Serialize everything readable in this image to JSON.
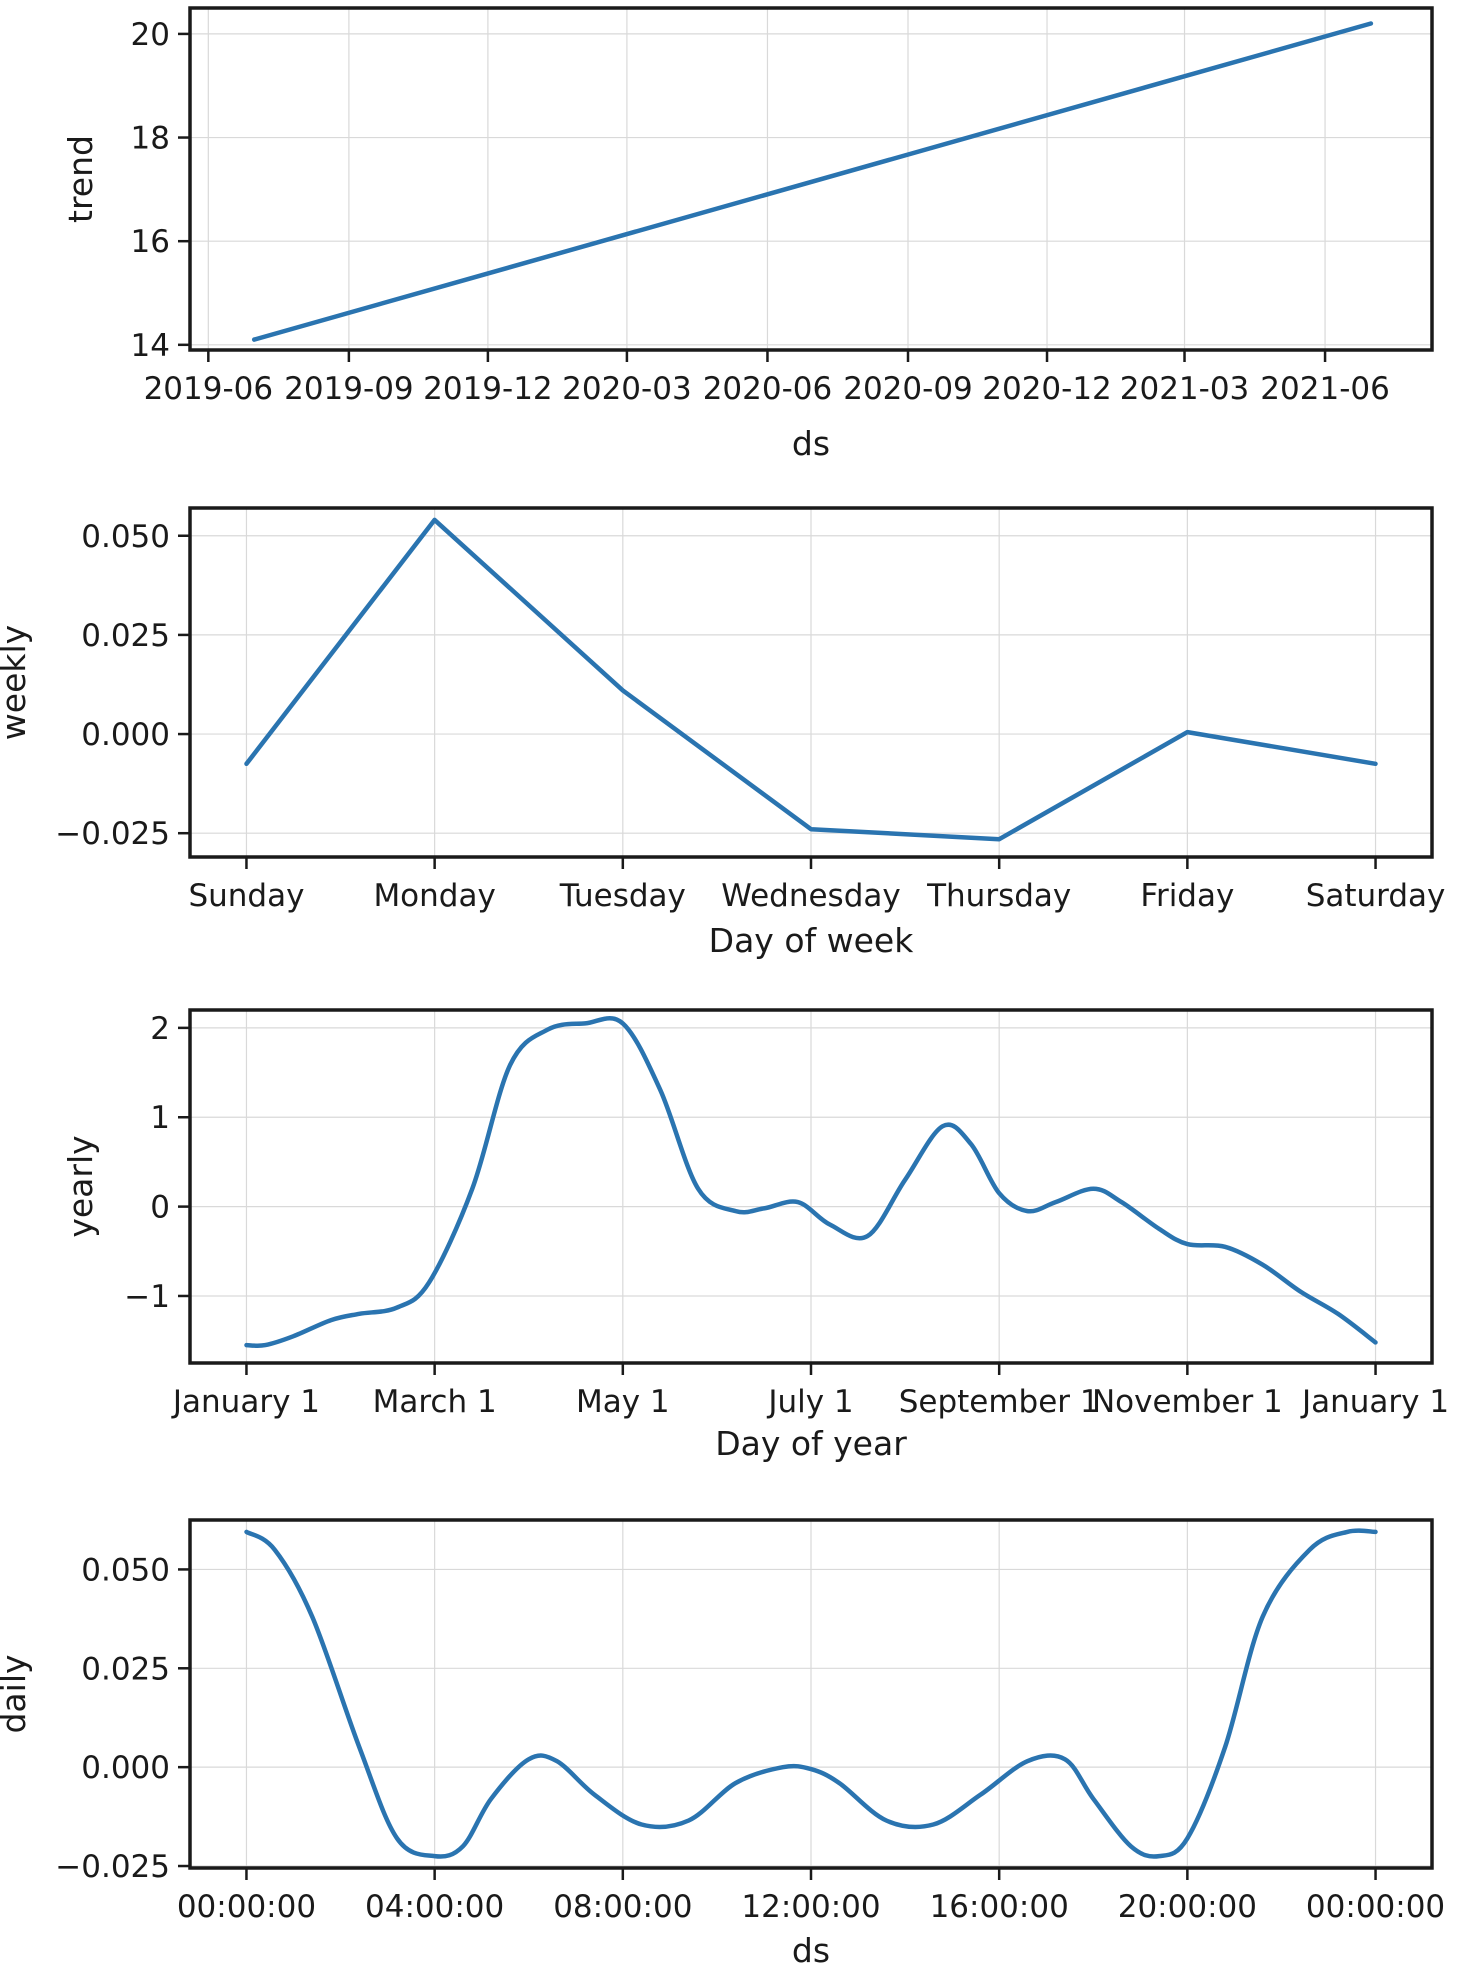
{
  "chart_data": [
    {
      "type": "line",
      "panel": "trend",
      "xlabel": "ds",
      "ylabel": "trend",
      "color": "#2a74b0",
      "xlim": [
        "2019-05-20",
        "2021-08-10"
      ],
      "ylim": [
        13.9,
        20.5
      ],
      "xticks": [
        "2019-06",
        "2019-09",
        "2019-12",
        "2020-03",
        "2020-06",
        "2020-09",
        "2020-12",
        "2021-03",
        "2021-06"
      ],
      "yticks": [
        14,
        16,
        18,
        20
      ],
      "x": [
        "2019-07-01",
        "2021-07-01"
      ],
      "y": [
        14.1,
        20.2
      ]
    },
    {
      "type": "line",
      "panel": "weekly",
      "xlabel": "Day of week",
      "ylabel": "weekly",
      "color": "#2a74b0",
      "xlim": [
        -0.3,
        6.3
      ],
      "ylim": [
        -0.031,
        0.057
      ],
      "categories": [
        "Sunday",
        "Monday",
        "Tuesday",
        "Wednesday",
        "Thursday",
        "Friday",
        "Saturday"
      ],
      "yticks": [
        -0.025,
        0.0,
        0.025,
        0.05
      ],
      "ytick_labels": [
        "−0.025",
        "0.000",
        "0.025",
        "0.050"
      ],
      "values": [
        -0.0075,
        0.054,
        0.011,
        -0.024,
        -0.0265,
        0.0005,
        -0.0075
      ]
    },
    {
      "type": "line",
      "panel": "yearly",
      "xlabel": "Day of year",
      "ylabel": "yearly",
      "color": "#2a74b0",
      "xlim": [
        -0.3,
        6.3
      ],
      "ylim": [
        -1.75,
        2.2
      ],
      "categories": [
        "January 1",
        "March 1",
        "May 1",
        "July 1",
        "September 1",
        "November 1",
        "January 1"
      ],
      "yticks": [
        -1,
        0,
        1,
        2
      ],
      "ytick_labels": [
        "−1",
        "0",
        "1",
        "2"
      ],
      "x": [
        0,
        0.1,
        0.25,
        0.45,
        0.6,
        0.8,
        0.97,
        1.2,
        1.4,
        1.6,
        1.8,
        2.0,
        2.2,
        2.4,
        2.6,
        2.75,
        2.93,
        3.1,
        3.3,
        3.5,
        3.7,
        3.85,
        4.0,
        4.15,
        4.3,
        4.5,
        4.65,
        4.85,
        5.0,
        5.2,
        5.4,
        5.6,
        5.8,
        6.0
      ],
      "y": [
        -1.55,
        -1.55,
        -1.45,
        -1.27,
        -1.2,
        -1.13,
        -0.85,
        0.2,
        1.58,
        1.98,
        2.05,
        2.05,
        1.3,
        0.2,
        -0.05,
        -0.02,
        0.05,
        -0.2,
        -0.33,
        0.3,
        0.9,
        0.7,
        0.15,
        -0.05,
        0.05,
        0.2,
        0.05,
        -0.25,
        -0.42,
        -0.45,
        -0.65,
        -0.95,
        -1.2,
        -1.52
      ]
    },
    {
      "type": "line",
      "panel": "daily",
      "xlabel": "ds",
      "ylabel": "daily",
      "color": "#2a74b0",
      "xlim": [
        -0.3,
        6.3
      ],
      "ylim": [
        -0.0255,
        0.0625
      ],
      "categories": [
        "00:00:00",
        "04:00:00",
        "08:00:00",
        "12:00:00",
        "16:00:00",
        "20:00:00",
        "00:00:00"
      ],
      "yticks": [
        -0.025,
        0.0,
        0.025,
        0.05
      ],
      "ytick_labels": [
        "−0.025",
        "0.000",
        "0.025",
        "0.050"
      ],
      "x": [
        0,
        0.15,
        0.35,
        0.6,
        0.8,
        1.0,
        1.15,
        1.3,
        1.5,
        1.65,
        1.85,
        2.1,
        2.35,
        2.6,
        2.85,
        3.0,
        3.15,
        3.4,
        3.65,
        3.9,
        4.15,
        4.35,
        4.5,
        4.7,
        4.85,
        5.0,
        5.2,
        5.4,
        5.65,
        5.85,
        6.0
      ],
      "y": [
        0.0595,
        0.055,
        0.038,
        0.005,
        -0.018,
        -0.0225,
        -0.02,
        -0.008,
        0.002,
        0.0015,
        -0.007,
        -0.0145,
        -0.0135,
        -0.004,
        0.0,
        -0.0005,
        -0.004,
        -0.0135,
        -0.0145,
        -0.007,
        0.0015,
        0.002,
        -0.008,
        -0.02,
        -0.0225,
        -0.018,
        0.005,
        0.038,
        0.055,
        0.0595,
        0.0595
      ]
    }
  ]
}
